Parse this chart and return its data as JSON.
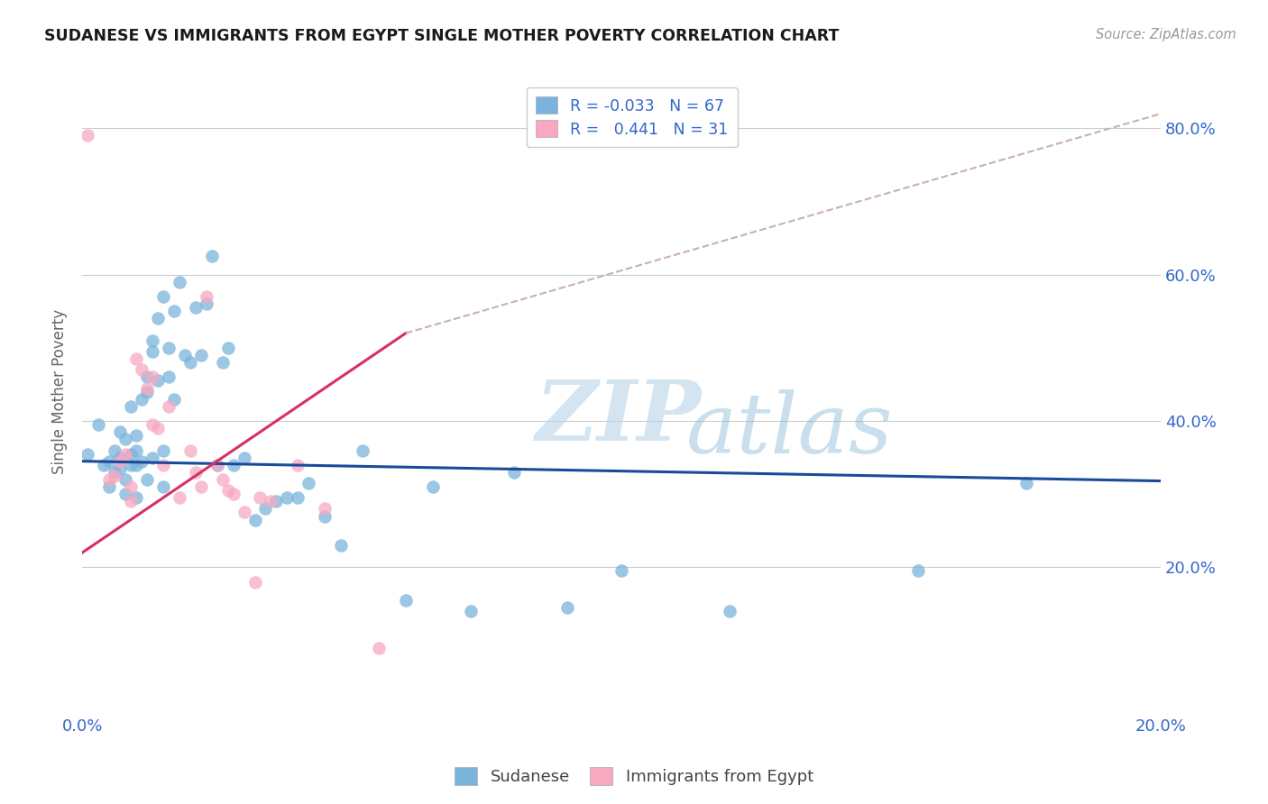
{
  "title": "SUDANESE VS IMMIGRANTS FROM EGYPT SINGLE MOTHER POVERTY CORRELATION CHART",
  "source": "Source: ZipAtlas.com",
  "ylabel": "Single Mother Poverty",
  "yticks": [
    0.2,
    0.4,
    0.6,
    0.8
  ],
  "ytick_labels": [
    "20.0%",
    "40.0%",
    "60.0%",
    "80.0%"
  ],
  "xlim": [
    0.0,
    0.2
  ],
  "ylim": [
    0.0,
    0.88
  ],
  "legend_entries": [
    {
      "label": "R = -0.033   N = 67",
      "color": "#a8c8e8"
    },
    {
      "label": "R =   0.441   N = 31",
      "color": "#f8c0d0"
    }
  ],
  "sudanese_color": "#7ab4dc",
  "egypt_color": "#f8a8c0",
  "blue_line_color": "#1a4a9a",
  "pink_line_color": "#d83060",
  "dashed_line_color": "#c8b0b8",
  "watermark_zip": "ZIP",
  "watermark_atlas": "atlas",
  "sudanese_x": [
    0.001,
    0.003,
    0.004,
    0.005,
    0.005,
    0.006,
    0.006,
    0.007,
    0.007,
    0.007,
    0.008,
    0.008,
    0.008,
    0.009,
    0.009,
    0.009,
    0.01,
    0.01,
    0.01,
    0.01,
    0.011,
    0.011,
    0.012,
    0.012,
    0.012,
    0.013,
    0.013,
    0.013,
    0.014,
    0.014,
    0.015,
    0.015,
    0.015,
    0.016,
    0.016,
    0.017,
    0.017,
    0.018,
    0.019,
    0.02,
    0.021,
    0.022,
    0.023,
    0.024,
    0.025,
    0.026,
    0.027,
    0.028,
    0.03,
    0.032,
    0.034,
    0.036,
    0.038,
    0.04,
    0.042,
    0.045,
    0.048,
    0.052,
    0.06,
    0.065,
    0.072,
    0.08,
    0.09,
    0.1,
    0.12,
    0.155,
    0.175
  ],
  "sudanese_y": [
    0.355,
    0.395,
    0.34,
    0.31,
    0.345,
    0.33,
    0.36,
    0.335,
    0.35,
    0.385,
    0.32,
    0.3,
    0.375,
    0.34,
    0.355,
    0.42,
    0.295,
    0.34,
    0.36,
    0.38,
    0.345,
    0.43,
    0.32,
    0.44,
    0.46,
    0.35,
    0.495,
    0.51,
    0.455,
    0.54,
    0.31,
    0.36,
    0.57,
    0.46,
    0.5,
    0.43,
    0.55,
    0.59,
    0.49,
    0.48,
    0.555,
    0.49,
    0.56,
    0.625,
    0.34,
    0.48,
    0.5,
    0.34,
    0.35,
    0.265,
    0.28,
    0.29,
    0.295,
    0.295,
    0.315,
    0.27,
    0.23,
    0.36,
    0.155,
    0.31,
    0.14,
    0.33,
    0.145,
    0.195,
    0.14,
    0.195,
    0.315
  ],
  "egypt_x": [
    0.001,
    0.005,
    0.006,
    0.007,
    0.008,
    0.009,
    0.009,
    0.01,
    0.011,
    0.012,
    0.013,
    0.013,
    0.014,
    0.015,
    0.016,
    0.018,
    0.02,
    0.021,
    0.022,
    0.023,
    0.025,
    0.026,
    0.027,
    0.028,
    0.03,
    0.032,
    0.033,
    0.035,
    0.04,
    0.045,
    0.055
  ],
  "egypt_y": [
    0.79,
    0.32,
    0.325,
    0.345,
    0.355,
    0.29,
    0.31,
    0.485,
    0.47,
    0.445,
    0.46,
    0.395,
    0.39,
    0.34,
    0.42,
    0.295,
    0.36,
    0.33,
    0.31,
    0.57,
    0.34,
    0.32,
    0.305,
    0.3,
    0.275,
    0.18,
    0.295,
    0.29,
    0.34,
    0.28,
    0.09
  ],
  "blue_line_x": [
    0.0,
    0.2
  ],
  "blue_line_y": [
    0.345,
    0.318
  ],
  "pink_line_x": [
    0.0,
    0.06
  ],
  "pink_line_y": [
    0.22,
    0.52
  ],
  "dashed_line_x": [
    0.06,
    0.2
  ],
  "dashed_line_y": [
    0.52,
    0.82
  ]
}
